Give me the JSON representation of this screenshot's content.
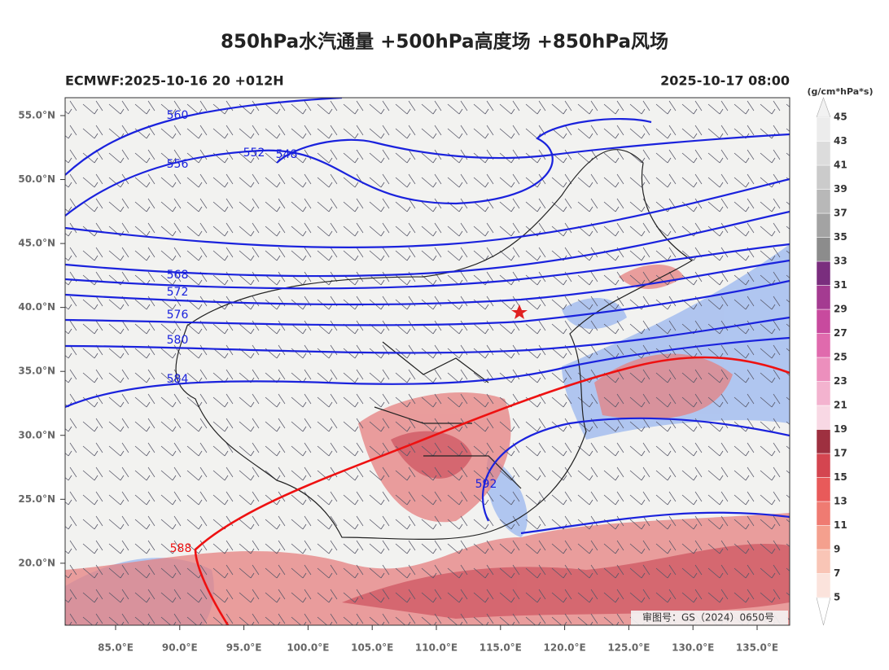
{
  "header": {
    "title": "850hPa水汽通量 +500hPa高度场 +850hPa风场",
    "run": "ECMWF:2025-10-16 20 +012H",
    "valid": "2025-10-17 08:00"
  },
  "map": {
    "lat_ticks": [
      {
        "value": 55,
        "label": "55.0°N"
      },
      {
        "value": 50,
        "label": "50.0°N"
      },
      {
        "value": 45,
        "label": "45.0°N"
      },
      {
        "value": 40,
        "label": "40.0°N"
      },
      {
        "value": 35,
        "label": "35.0°N"
      },
      {
        "value": 30,
        "label": "30.0°N"
      },
      {
        "value": 25,
        "label": "25.0°N"
      },
      {
        "value": 20,
        "label": "20.0°N"
      }
    ],
    "lon_ticks": [
      {
        "value": 85,
        "label": "85.0°E"
      },
      {
        "value": 90,
        "label": "90.0°E"
      },
      {
        "value": 95,
        "label": "95.0°E"
      },
      {
        "value": 100,
        "label": "100.0°E"
      },
      {
        "value": 105,
        "label": "105.0°E"
      },
      {
        "value": 110,
        "label": "110.0°E"
      },
      {
        "value": 115,
        "label": "115.0°E"
      },
      {
        "value": 120,
        "label": "120.0°E"
      },
      {
        "value": 125,
        "label": "125.0°E"
      },
      {
        "value": 130,
        "label": "130.0°E"
      },
      {
        "value": 135,
        "label": "135.0°E"
      }
    ],
    "contour_labels": [
      560,
      556,
      552,
      548,
      568,
      572,
      576,
      580,
      584,
      588,
      592
    ],
    "watermark": "审图号：GS（2024）0650号"
  },
  "colorbar": {
    "unit": "(g/cm*hPa*s)",
    "ticks": [
      5,
      7,
      9,
      11,
      13,
      15,
      17,
      19,
      21,
      23,
      25,
      27,
      29,
      31,
      33,
      35,
      37,
      39,
      41,
      43,
      45
    ],
    "colors": [
      "#fbe3dc",
      "#f9c5b6",
      "#f4a08e",
      "#ef7b72",
      "#e85a5a",
      "#d44550",
      "#9e3040",
      "#f8d8e4",
      "#f3b3cf",
      "#ec8fbd",
      "#e06aad",
      "#c84a9e",
      "#a43b91",
      "#7a2e7e",
      "#8c8c8c",
      "#a3a3a3",
      "#b8b8b8",
      "#cbcbcb",
      "#dcdcdc",
      "#ececec"
    ]
  }
}
